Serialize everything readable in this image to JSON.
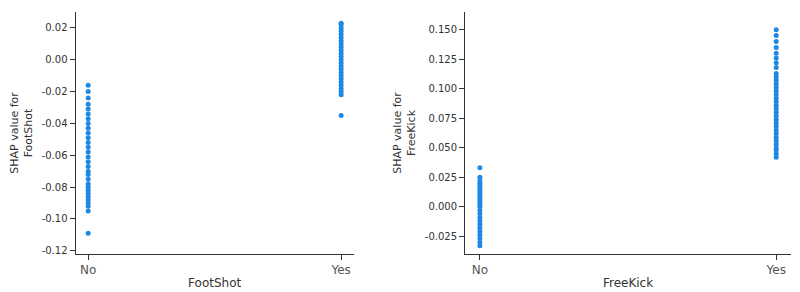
{
  "chart_data": [
    {
      "type": "scatter",
      "x_label": "FootShot",
      "y_label": "SHAP value for\nFootShot",
      "color": "#1e88e5",
      "grid": false,
      "marker": "circle",
      "x": [
        0,
        0,
        0,
        0,
        0,
        0,
        0,
        0,
        0,
        0,
        0,
        0,
        0,
        0,
        0,
        0,
        0,
        0,
        0,
        0,
        0,
        0,
        0,
        0,
        0,
        0,
        0,
        0,
        0,
        0,
        1,
        1,
        1,
        1,
        1,
        1,
        1,
        1,
        1,
        1,
        1,
        1,
        1,
        1,
        1,
        1,
        1,
        1,
        1,
        1,
        1,
        1,
        1,
        1,
        1
      ],
      "values": [
        -0.109,
        -0.095,
        -0.092,
        -0.09,
        -0.088,
        -0.086,
        -0.084,
        -0.082,
        -0.08,
        -0.078,
        -0.075,
        -0.072,
        -0.07,
        -0.067,
        -0.064,
        -0.061,
        -0.058,
        -0.055,
        -0.052,
        -0.049,
        -0.046,
        -0.043,
        -0.04,
        -0.037,
        -0.034,
        -0.031,
        -0.028,
        -0.024,
        -0.02,
        -0.016,
        -0.035,
        -0.022,
        -0.02,
        -0.018,
        -0.016,
        -0.014,
        -0.012,
        -0.01,
        -0.008,
        -0.006,
        -0.004,
        -0.002,
        0.0,
        0.002,
        0.004,
        0.006,
        0.008,
        0.01,
        0.012,
        0.014,
        0.016,
        0.018,
        0.02,
        0.022,
        0.023
      ],
      "xlim": [
        -0.05,
        1.05
      ],
      "xticks": [
        {
          "value": 0,
          "label": "No"
        },
        {
          "value": 1,
          "label": "Yes"
        }
      ],
      "ylim": [
        -0.122,
        0.03
      ],
      "yticks": [
        -0.12,
        {
          "value": -0.1,
          "label": "-0.10"
        },
        -0.08,
        -0.06,
        -0.04,
        -0.02,
        {
          "value": 0,
          "label": "0.00"
        },
        0.02
      ]
    },
    {
      "type": "scatter",
      "x_label": "FreeKick",
      "y_label": "SHAP value for\nFreeKick",
      "color": "#1e88e5",
      "grid": false,
      "marker": "circle",
      "x": [
        0,
        0,
        0,
        0,
        0,
        0,
        0,
        0,
        0,
        0,
        0,
        0,
        0,
        0,
        0,
        0,
        0,
        0,
        0,
        0,
        0,
        0,
        0,
        0,
        0,
        1,
        1,
        1,
        1,
        1,
        1,
        1,
        1,
        1,
        1,
        1,
        1,
        1,
        1,
        1,
        1,
        1,
        1,
        1,
        1,
        1,
        1,
        1,
        1,
        1,
        1,
        1,
        1,
        1,
        1,
        1,
        1,
        1
      ],
      "values": [
        -0.033,
        -0.03,
        -0.027,
        -0.024,
        -0.021,
        -0.018,
        -0.015,
        -0.012,
        -0.009,
        -0.006,
        -0.003,
        0.0,
        0.002,
        0.004,
        0.006,
        0.008,
        0.01,
        0.012,
        0.014,
        0.016,
        0.018,
        0.02,
        0.022,
        0.025,
        0.033,
        0.042,
        0.045,
        0.048,
        0.05,
        0.053,
        0.056,
        0.059,
        0.062,
        0.065,
        0.068,
        0.071,
        0.074,
        0.077,
        0.08,
        0.083,
        0.086,
        0.089,
        0.092,
        0.095,
        0.098,
        0.101,
        0.104,
        0.107,
        0.11,
        0.113,
        0.118,
        0.122,
        0.126,
        0.13,
        0.135,
        0.14,
        0.145,
        0.15
      ],
      "xlim": [
        -0.05,
        1.05
      ],
      "xticks": [
        {
          "value": 0,
          "label": "No"
        },
        {
          "value": 1,
          "label": "Yes"
        }
      ],
      "ylim": [
        -0.04,
        0.165
      ],
      "yticks": [
        -0.025,
        {
          "value": 0,
          "label": "0.000"
        },
        0.025,
        {
          "value": 0.05,
          "label": "0.050"
        },
        0.075,
        {
          "value": 0.1,
          "label": "0.100"
        },
        0.125,
        {
          "value": 0.15,
          "label": "0.150"
        }
      ]
    }
  ]
}
